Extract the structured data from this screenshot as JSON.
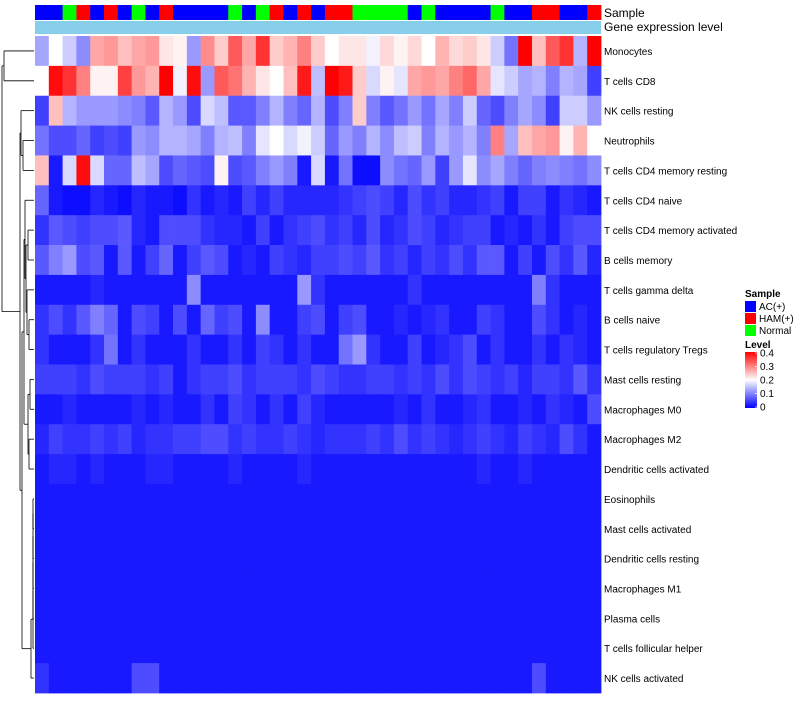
{
  "chart_data": {
    "type": "heatmap",
    "title": "",
    "annotation_rows": [
      "Sample",
      "Gene expression level"
    ],
    "rows": [
      "Monocytes",
      "T cells CD8",
      "NK cells resting",
      "Neutrophils",
      "T cells CD4 memory resting",
      "T cells CD4 naive",
      "T cells CD4 memory activated",
      "B cells memory",
      "T cells gamma delta",
      "B cells naive",
      "T cells regulatory  Tregs",
      "Mast cells resting",
      "Macrophages M0",
      "Macrophages M2",
      "Dendritic cells activated",
      "Eosinophils",
      "Mast cells activated",
      "Dendritic cells resting",
      "Macrophages M1",
      "Plasma cells",
      "T cells follicular helper",
      "NK cells activated"
    ],
    "sample_groups": [
      "AC",
      "AC",
      "N",
      "H",
      "AC",
      "H",
      "AC",
      "N",
      "AC",
      "H",
      "AC",
      "AC",
      "AC",
      "AC",
      "N",
      "AC",
      "N",
      "H",
      "AC",
      "H",
      "AC",
      "H",
      "H",
      "N",
      "N",
      "N",
      "N",
      "AC",
      "N",
      "AC",
      "AC",
      "AC",
      "AC",
      "N",
      "AC",
      "AC",
      "H",
      "H",
      "AC",
      "AC",
      "H"
    ],
    "values": [
      [
        0.13,
        0.2,
        0.16,
        0.11,
        0.27,
        0.28,
        0.25,
        0.27,
        0.28,
        0.22,
        0.21,
        0.12,
        0.29,
        0.24,
        0.33,
        0.27,
        0.36,
        0.24,
        0.26,
        0.3,
        0.24,
        0.2,
        0.22,
        0.22,
        0.19,
        0.23,
        0.21,
        0.23,
        0.2,
        0.26,
        0.23,
        0.24,
        0.22,
        0.16,
        0.09,
        0.4,
        0.25,
        0.33,
        0.36,
        0.14,
        0.41
      ],
      [
        0.2,
        0.39,
        0.36,
        0.3,
        0.21,
        0.21,
        0.35,
        0.28,
        0.26,
        0.4,
        0.19,
        0.39,
        0.12,
        0.33,
        0.31,
        0.26,
        0.22,
        0.2,
        0.25,
        0.38,
        0.15,
        0.4,
        0.38,
        0.24,
        0.17,
        0.21,
        0.18,
        0.27,
        0.28,
        0.27,
        0.3,
        0.32,
        0.27,
        0.18,
        0.16,
        0.13,
        0.14,
        0.1,
        0.14,
        0.13,
        0.05
      ],
      [
        0.05,
        0.25,
        0.14,
        0.12,
        0.12,
        0.12,
        0.11,
        0.1,
        0.07,
        0.14,
        0.12,
        0.06,
        0.17,
        0.15,
        0.07,
        0.07,
        0.1,
        0.14,
        0.1,
        0.08,
        0.14,
        0.06,
        0.1,
        0.24,
        0.1,
        0.07,
        0.09,
        0.12,
        0.09,
        0.13,
        0.1,
        0.16,
        0.08,
        0.06,
        0.1,
        0.13,
        0.11,
        0.05,
        0.16,
        0.16,
        0.12
      ],
      [
        0.09,
        0.06,
        0.06,
        0.08,
        0.05,
        0.06,
        0.05,
        0.12,
        0.11,
        0.14,
        0.14,
        0.13,
        0.1,
        0.14,
        0.15,
        0.1,
        0.18,
        0.2,
        0.17,
        0.19,
        0.16,
        0.08,
        0.12,
        0.1,
        0.14,
        0.11,
        0.15,
        0.16,
        0.1,
        0.14,
        0.12,
        0.14,
        0.1,
        0.3,
        0.13,
        0.25,
        0.27,
        0.28,
        0.21,
        0.26,
        0.2
      ],
      [
        0.25,
        0.02,
        0.17,
        0.39,
        0.17,
        0.08,
        0.08,
        0.15,
        0.13,
        0.06,
        0.08,
        0.07,
        0.06,
        0.21,
        0.06,
        0.07,
        0.1,
        0.12,
        0.1,
        0.02,
        0.17,
        0.02,
        0.09,
        0.01,
        0.01,
        0.11,
        0.09,
        0.08,
        0.12,
        0.05,
        0.12,
        0.18,
        0.11,
        0.13,
        0.1,
        0.08,
        0.1,
        0.11,
        0.1,
        0.09,
        0.11
      ],
      [
        0.08,
        0.02,
        0.01,
        0.01,
        0.03,
        0.02,
        0.01,
        0.03,
        0.02,
        0.02,
        0.01,
        0.04,
        0.02,
        0.03,
        0.02,
        0.05,
        0.03,
        0.05,
        0.03,
        0.03,
        0.03,
        0.03,
        0.04,
        0.05,
        0.06,
        0.05,
        0.03,
        0.06,
        0.04,
        0.05,
        0.03,
        0.03,
        0.04,
        0.05,
        0.02,
        0.05,
        0.05,
        0.02,
        0.04,
        0.03,
        0.02
      ],
      [
        0.04,
        0.07,
        0.06,
        0.05,
        0.06,
        0.06,
        0.07,
        0.03,
        0.02,
        0.06,
        0.06,
        0.06,
        0.04,
        0.03,
        0.03,
        0.02,
        0.05,
        0.02,
        0.04,
        0.05,
        0.06,
        0.04,
        0.05,
        0.03,
        0.06,
        0.03,
        0.04,
        0.06,
        0.05,
        0.03,
        0.04,
        0.05,
        0.05,
        0.02,
        0.03,
        0.02,
        0.04,
        0.02,
        0.05,
        0.06,
        0.06
      ],
      [
        0.07,
        0.1,
        0.12,
        0.06,
        0.07,
        0.02,
        0.07,
        0.02,
        0.05,
        0.08,
        0.02,
        0.05,
        0.07,
        0.06,
        0.02,
        0.03,
        0.02,
        0.05,
        0.04,
        0.03,
        0.05,
        0.05,
        0.06,
        0.05,
        0.07,
        0.04,
        0.05,
        0.03,
        0.05,
        0.04,
        0.06,
        0.04,
        0.07,
        0.07,
        0.02,
        0.05,
        0.02,
        0.06,
        0.04,
        0.07,
        0.03
      ],
      [
        0.02,
        0.02,
        0.02,
        0.02,
        0.03,
        0.02,
        0.02,
        0.02,
        0.02,
        0.02,
        0.02,
        0.11,
        0.02,
        0.02,
        0.02,
        0.02,
        0.02,
        0.02,
        0.02,
        0.12,
        0.04,
        0.02,
        0.02,
        0.02,
        0.02,
        0.02,
        0.02,
        0.04,
        0.02,
        0.02,
        0.02,
        0.02,
        0.02,
        0.02,
        0.02,
        0.02,
        0.1,
        0.04,
        0.02,
        0.02,
        0.02
      ],
      [
        0.04,
        0.06,
        0.04,
        0.07,
        0.1,
        0.08,
        0.02,
        0.06,
        0.05,
        0.02,
        0.06,
        0.02,
        0.08,
        0.05,
        0.06,
        0.02,
        0.11,
        0.02,
        0.02,
        0.05,
        0.06,
        0.02,
        0.05,
        0.06,
        0.02,
        0.02,
        0.03,
        0.02,
        0.03,
        0.04,
        0.02,
        0.02,
        0.05,
        0.04,
        0.02,
        0.02,
        0.06,
        0.04,
        0.02,
        0.03,
        0.02
      ],
      [
        0.04,
        0.02,
        0.02,
        0.02,
        0.04,
        0.09,
        0.02,
        0.04,
        0.02,
        0.02,
        0.02,
        0.04,
        0.02,
        0.02,
        0.04,
        0.02,
        0.05,
        0.04,
        0.02,
        0.04,
        0.02,
        0.02,
        0.09,
        0.12,
        0.04,
        0.02,
        0.02,
        0.05,
        0.02,
        0.03,
        0.04,
        0.06,
        0.02,
        0.04,
        0.02,
        0.02,
        0.04,
        0.02,
        0.04,
        0.03,
        0.02
      ],
      [
        0.05,
        0.05,
        0.05,
        0.04,
        0.06,
        0.05,
        0.05,
        0.05,
        0.04,
        0.05,
        0.02,
        0.04,
        0.05,
        0.05,
        0.06,
        0.04,
        0.05,
        0.05,
        0.05,
        0.04,
        0.06,
        0.05,
        0.04,
        0.04,
        0.05,
        0.05,
        0.04,
        0.05,
        0.04,
        0.06,
        0.04,
        0.06,
        0.05,
        0.04,
        0.05,
        0.03,
        0.05,
        0.05,
        0.04,
        0.07,
        0.04
      ],
      [
        0.02,
        0.02,
        0.03,
        0.02,
        0.02,
        0.02,
        0.02,
        0.03,
        0.02,
        0.03,
        0.02,
        0.02,
        0.04,
        0.02,
        0.05,
        0.04,
        0.02,
        0.04,
        0.02,
        0.05,
        0.03,
        0.02,
        0.02,
        0.02,
        0.02,
        0.02,
        0.03,
        0.02,
        0.04,
        0.02,
        0.02,
        0.03,
        0.04,
        0.02,
        0.02,
        0.03,
        0.02,
        0.04,
        0.03,
        0.02,
        0.06
      ],
      [
        0.03,
        0.05,
        0.04,
        0.04,
        0.05,
        0.04,
        0.05,
        0.03,
        0.04,
        0.04,
        0.05,
        0.05,
        0.06,
        0.06,
        0.04,
        0.05,
        0.04,
        0.04,
        0.05,
        0.04,
        0.03,
        0.04,
        0.04,
        0.04,
        0.05,
        0.04,
        0.06,
        0.04,
        0.05,
        0.04,
        0.03,
        0.04,
        0.05,
        0.04,
        0.03,
        0.05,
        0.04,
        0.03,
        0.06,
        0.04,
        0.02
      ],
      [
        0.02,
        0.03,
        0.03,
        0.02,
        0.03,
        0.02,
        0.02,
        0.02,
        0.03,
        0.03,
        0.02,
        0.02,
        0.02,
        0.02,
        0.03,
        0.02,
        0.02,
        0.02,
        0.02,
        0.03,
        0.02,
        0.02,
        0.02,
        0.02,
        0.02,
        0.02,
        0.02,
        0.02,
        0.02,
        0.02,
        0.02,
        0.02,
        0.03,
        0.02,
        0.02,
        0.03,
        0.02,
        0.02,
        0.02,
        0.02,
        0.02
      ],
      [
        0.02,
        0.02,
        0.02,
        0.02,
        0.02,
        0.02,
        0.02,
        0.02,
        0.02,
        0.02,
        0.02,
        0.02,
        0.02,
        0.02,
        0.02,
        0.02,
        0.02,
        0.02,
        0.02,
        0.02,
        0.02,
        0.02,
        0.02,
        0.02,
        0.02,
        0.02,
        0.02,
        0.02,
        0.02,
        0.02,
        0.02,
        0.02,
        0.02,
        0.02,
        0.02,
        0.02,
        0.02,
        0.02,
        0.02,
        0.02,
        0.02
      ],
      [
        0.02,
        0.02,
        0.02,
        0.02,
        0.02,
        0.02,
        0.02,
        0.02,
        0.02,
        0.02,
        0.02,
        0.02,
        0.02,
        0.02,
        0.02,
        0.02,
        0.02,
        0.02,
        0.02,
        0.02,
        0.02,
        0.02,
        0.02,
        0.02,
        0.02,
        0.02,
        0.02,
        0.02,
        0.02,
        0.02,
        0.02,
        0.02,
        0.02,
        0.02,
        0.02,
        0.02,
        0.02,
        0.02,
        0.02,
        0.02,
        0.02
      ],
      [
        0.02,
        0.02,
        0.02,
        0.02,
        0.02,
        0.02,
        0.02,
        0.02,
        0.02,
        0.02,
        0.02,
        0.02,
        0.02,
        0.02,
        0.02,
        0.02,
        0.02,
        0.02,
        0.02,
        0.02,
        0.02,
        0.02,
        0.02,
        0.02,
        0.02,
        0.02,
        0.02,
        0.02,
        0.02,
        0.02,
        0.02,
        0.02,
        0.02,
        0.02,
        0.02,
        0.02,
        0.02,
        0.02,
        0.02,
        0.02,
        0.02
      ],
      [
        0.02,
        0.02,
        0.02,
        0.02,
        0.02,
        0.02,
        0.02,
        0.02,
        0.02,
        0.02,
        0.02,
        0.02,
        0.02,
        0.02,
        0.02,
        0.02,
        0.02,
        0.02,
        0.02,
        0.02,
        0.02,
        0.02,
        0.02,
        0.02,
        0.02,
        0.02,
        0.02,
        0.02,
        0.02,
        0.02,
        0.02,
        0.02,
        0.02,
        0.02,
        0.02,
        0.02,
        0.02,
        0.02,
        0.02,
        0.02,
        0.02
      ],
      [
        0.02,
        0.02,
        0.02,
        0.02,
        0.02,
        0.02,
        0.02,
        0.02,
        0.02,
        0.02,
        0.02,
        0.02,
        0.02,
        0.02,
        0.02,
        0.02,
        0.02,
        0.02,
        0.02,
        0.02,
        0.02,
        0.02,
        0.02,
        0.02,
        0.02,
        0.02,
        0.02,
        0.02,
        0.02,
        0.02,
        0.02,
        0.02,
        0.02,
        0.02,
        0.02,
        0.02,
        0.02,
        0.02,
        0.02,
        0.02,
        0.02
      ],
      [
        0.02,
        0.02,
        0.02,
        0.02,
        0.02,
        0.02,
        0.02,
        0.02,
        0.02,
        0.02,
        0.02,
        0.02,
        0.02,
        0.02,
        0.02,
        0.02,
        0.02,
        0.02,
        0.02,
        0.02,
        0.02,
        0.02,
        0.02,
        0.02,
        0.02,
        0.02,
        0.02,
        0.02,
        0.02,
        0.02,
        0.02,
        0.02,
        0.02,
        0.02,
        0.02,
        0.02,
        0.02,
        0.02,
        0.02,
        0.02,
        0.02
      ],
      [
        0.04,
        0.02,
        0.02,
        0.02,
        0.02,
        0.02,
        0.02,
        0.06,
        0.06,
        0.02,
        0.02,
        0.02,
        0.02,
        0.02,
        0.02,
        0.02,
        0.02,
        0.02,
        0.02,
        0.02,
        0.02,
        0.02,
        0.02,
        0.02,
        0.02,
        0.02,
        0.02,
        0.02,
        0.02,
        0.02,
        0.02,
        0.02,
        0.02,
        0.02,
        0.02,
        0.02,
        0.06,
        0.02,
        0.02,
        0.02,
        0.02
      ]
    ],
    "color_scale": {
      "min": 0,
      "mid": 0.2,
      "max": 0.4,
      "low": "#0000ff",
      "midcolor": "#ffffff",
      "high": "#ff0000"
    },
    "legend": {
      "sample_title": "Sample",
      "sample_items": [
        {
          "key": "AC",
          "label": "AC(+)",
          "color": "#0000ff"
        },
        {
          "key": "H",
          "label": "HAM(+)",
          "color": "#ff0000"
        },
        {
          "key": "N",
          "label": "Normal",
          "color": "#00ff00"
        }
      ],
      "level_title": "Level",
      "level_ticks": [
        "0.4",
        "0.3",
        "0.2",
        "0.1",
        "0"
      ],
      "position": "right"
    },
    "expression_bar_color": "#87ceeb"
  }
}
